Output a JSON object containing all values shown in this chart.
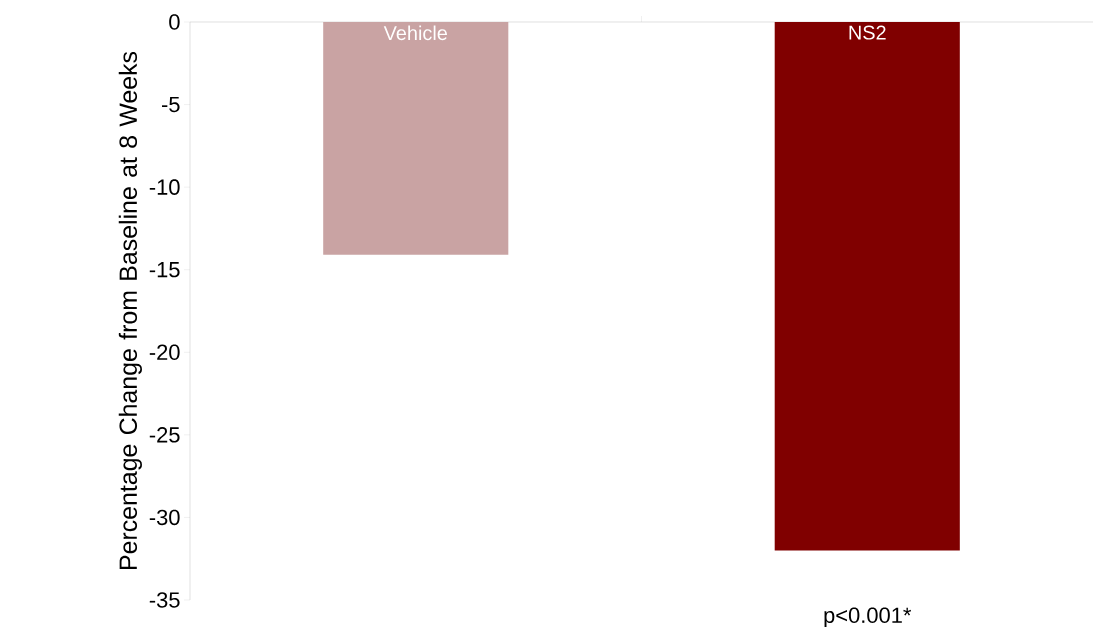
{
  "chart_data": {
    "type": "bar",
    "ylabel": "Percentage Change from Baseline at 8 Weeks",
    "categories": [
      "Vehicle",
      "NS2"
    ],
    "values": [
      -14.1,
      -32
    ],
    "colors": [
      "#c9a3a3",
      "#800000"
    ],
    "ylim": [
      -35,
      0
    ],
    "yticks": [
      -35,
      -30,
      -25,
      -20,
      -15,
      -10,
      -5,
      0
    ],
    "grid": false,
    "annotations": [
      "p<0.001*"
    ]
  }
}
